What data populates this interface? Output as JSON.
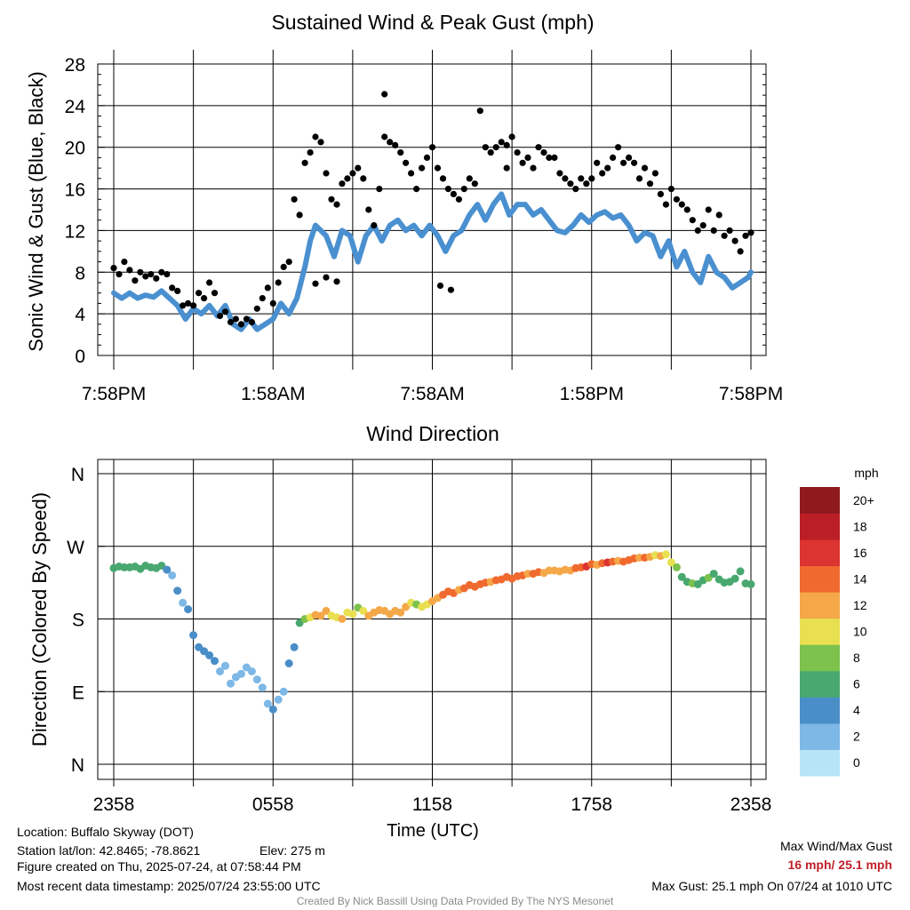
{
  "chart_data": [
    {
      "type": "line+scatter",
      "title": "Sustained Wind & Peak Gust (mph)",
      "ylabel": "Sonic Wind & Gust (Blue, Black)",
      "xlabel": "",
      "ylim": [
        0,
        28
      ],
      "yticks": [
        "0",
        "4",
        "8",
        "12",
        "16",
        "20",
        "24",
        "28"
      ],
      "xlim": [
        0,
        24
      ],
      "xticks": [
        {
          "x": 0,
          "label": "7:58PM"
        },
        {
          "x": 6,
          "label": "1:58AM"
        },
        {
          "x": 12,
          "label": "7:58AM"
        },
        {
          "x": 18,
          "label": "1:58PM"
        },
        {
          "x": 24,
          "label": "7:58PM"
        }
      ],
      "grid": true,
      "series": [
        {
          "kind": "line",
          "color": "#4a90d0",
          "x": [
            0,
            0.3,
            0.6,
            0.9,
            1.2,
            1.5,
            1.8,
            2.1,
            2.4,
            2.7,
            3.0,
            3.3,
            3.6,
            3.9,
            4.2,
            4.5,
            4.8,
            5.1,
            5.4,
            5.7,
            6.0,
            6.3,
            6.6,
            6.9,
            7.2,
            7.4,
            7.6,
            7.8,
            8.0,
            8.3,
            8.6,
            8.9,
            9.2,
            9.5,
            9.8,
            10.1,
            10.4,
            10.7,
            11.0,
            11.3,
            11.6,
            11.9,
            12.2,
            12.5,
            12.8,
            13.1,
            13.4,
            13.7,
            14.0,
            14.3,
            14.6,
            14.9,
            15.2,
            15.5,
            15.8,
            16.1,
            16.4,
            16.7,
            17.0,
            17.3,
            17.6,
            17.9,
            18.2,
            18.5,
            18.8,
            19.1,
            19.4,
            19.7,
            20.0,
            20.3,
            20.6,
            20.9,
            21.2,
            21.5,
            21.8,
            22.1,
            22.4,
            22.7,
            23.0,
            23.3,
            23.6,
            23.9,
            24.0
          ],
          "y": [
            6.0,
            5.5,
            6.0,
            5.5,
            5.8,
            5.6,
            6.2,
            5.5,
            4.8,
            3.5,
            4.5,
            4.0,
            4.8,
            3.8,
            4.8,
            3.0,
            2.5,
            3.5,
            2.5,
            3.0,
            3.5,
            5.0,
            4.0,
            5.5,
            8.5,
            11.0,
            12.5,
            12.0,
            11.5,
            9.5,
            12.0,
            11.5,
            9.0,
            11.5,
            12.5,
            11.0,
            12.5,
            13.0,
            12.0,
            12.5,
            11.5,
            12.5,
            11.5,
            10.0,
            11.5,
            12.0,
            13.5,
            14.5,
            13.0,
            14.5,
            15.5,
            13.5,
            14.5,
            14.5,
            13.5,
            14.0,
            13.0,
            12.0,
            11.8,
            12.5,
            13.5,
            12.8,
            13.5,
            13.8,
            13.2,
            13.5,
            12.5,
            11.0,
            11.8,
            11.5,
            9.5,
            11.0,
            8.5,
            10.0,
            8.0,
            7.0,
            9.5,
            8.0,
            7.5,
            6.5,
            7.0,
            7.5,
            8.0
          ]
        },
        {
          "kind": "scatter",
          "color": "#000000",
          "x": [
            0,
            0.2,
            0.4,
            0.6,
            0.8,
            1.0,
            1.2,
            1.4,
            1.6,
            1.8,
            2.0,
            2.2,
            2.4,
            2.6,
            2.8,
            3.0,
            3.2,
            3.4,
            3.6,
            3.8,
            4.0,
            4.2,
            4.4,
            4.6,
            4.8,
            5.0,
            5.2,
            5.4,
            5.6,
            5.8,
            6.0,
            6.2,
            6.4,
            6.6,
            6.8,
            7.0,
            7.2,
            7.4,
            7.6,
            7.8,
            8.0,
            8.2,
            8.4,
            8.6,
            8.8,
            9.0,
            9.2,
            9.4,
            9.6,
            9.8,
            10.0,
            10.2,
            10.4,
            10.6,
            10.8,
            11.0,
            11.2,
            11.4,
            11.6,
            11.8,
            12.0,
            12.2,
            12.4,
            12.6,
            12.8,
            13.0,
            13.2,
            13.4,
            13.6,
            13.8,
            14.0,
            14.2,
            14.4,
            14.6,
            14.8,
            15.0,
            15.2,
            15.4,
            15.6,
            15.8,
            16.0,
            16.2,
            16.4,
            16.6,
            16.8,
            17.0,
            17.2,
            17.4,
            17.6,
            17.8,
            18.0,
            18.2,
            18.4,
            18.6,
            18.8,
            19.0,
            19.2,
            19.4,
            19.6,
            19.8,
            20.0,
            20.2,
            20.4,
            20.6,
            20.8,
            21.0,
            21.2,
            21.4,
            21.6,
            21.8,
            22.0,
            22.2,
            22.4,
            22.6,
            22.8,
            23.0,
            23.2,
            23.4,
            23.6,
            23.8,
            24.0,
            10.2,
            14.8,
            8.0,
            8.4,
            7.6,
            12.3,
            12.7
          ],
          "y": [
            8.4,
            7.8,
            9.0,
            8.2,
            7.2,
            8.0,
            7.6,
            7.8,
            7.4,
            8.0,
            7.8,
            6.5,
            6.2,
            4.8,
            5.0,
            4.8,
            6.0,
            5.5,
            7.0,
            6.0,
            3.8,
            4.2,
            3.2,
            3.5,
            3.0,
            3.5,
            3.2,
            4.5,
            5.5,
            6.5,
            5.0,
            7.0,
            8.5,
            9.0,
            15.0,
            13.5,
            18.5,
            19.5,
            21.0,
            20.5,
            17.5,
            15.0,
            14.5,
            16.5,
            17.0,
            17.5,
            18.0,
            17.0,
            14.0,
            12.5,
            16.0,
            21.0,
            20.5,
            20.2,
            19.5,
            18.5,
            17.5,
            16.0,
            18.0,
            19.0,
            20.0,
            18.0,
            17.0,
            16.0,
            15.5,
            15.0,
            16.0,
            17.0,
            16.5,
            23.5,
            20.0,
            19.5,
            20.0,
            20.5,
            18.0,
            21.0,
            19.5,
            18.5,
            19.0,
            18.0,
            20.0,
            19.5,
            19.0,
            19.0,
            17.5,
            17.0,
            16.5,
            16.0,
            17.0,
            16.5,
            17.0,
            18.5,
            17.5,
            18.0,
            19.0,
            20.0,
            18.5,
            19.0,
            18.5,
            17.0,
            18.0,
            16.5,
            17.5,
            15.5,
            14.5,
            16.0,
            15.0,
            14.5,
            14.0,
            13.0,
            12.0,
            12.5,
            14.0,
            12.0,
            13.5,
            11.5,
            12.0,
            11.0,
            10.0,
            11.5,
            11.8,
            25.1,
            20.2,
            7.5,
            7.1,
            6.9,
            6.7,
            6.3
          ]
        }
      ]
    },
    {
      "type": "scatter",
      "title": "Wind Direction",
      "ylabel": "Direction (Colored By Speed)",
      "xlabel": "Time (UTC)",
      "ylim": [
        0,
        360
      ],
      "yticks": [
        {
          "v": 0,
          "label": "N"
        },
        {
          "v": 90,
          "label": "E"
        },
        {
          "v": 180,
          "label": "S"
        },
        {
          "v": 270,
          "label": "W"
        },
        {
          "v": 360,
          "label": "N"
        }
      ],
      "xlim": [
        0,
        24
      ],
      "xticks": [
        {
          "x": 0,
          "label": "2358"
        },
        {
          "x": 6,
          "label": "0558"
        },
        {
          "x": 12,
          "label": "1158"
        },
        {
          "x": 18,
          "label": "1758"
        },
        {
          "x": 24,
          "label": "2358"
        }
      ],
      "grid": true,
      "x": [
        0,
        0.2,
        0.4,
        0.6,
        0.8,
        1.0,
        1.2,
        1.4,
        1.6,
        1.8,
        2.0,
        2.2,
        2.4,
        2.6,
        2.8,
        3.0,
        3.2,
        3.4,
        3.6,
        3.8,
        4.0,
        4.2,
        4.4,
        4.6,
        4.8,
        5.0,
        5.2,
        5.4,
        5.6,
        5.8,
        6.0,
        6.2,
        6.4,
        6.6,
        6.8,
        7.0,
        7.2,
        7.4,
        7.6,
        7.8,
        8.0,
        8.2,
        8.4,
        8.6,
        8.8,
        9.0,
        9.2,
        9.4,
        9.6,
        9.8,
        10.0,
        10.2,
        10.4,
        10.6,
        10.8,
        11.0,
        11.2,
        11.4,
        11.6,
        11.8,
        12.0,
        12.2,
        12.4,
        12.6,
        12.8,
        13.0,
        13.2,
        13.4,
        13.6,
        13.8,
        14.0,
        14.2,
        14.4,
        14.6,
        14.8,
        15.0,
        15.2,
        15.4,
        15.6,
        15.8,
        16.0,
        16.2,
        16.4,
        16.6,
        16.8,
        17.0,
        17.2,
        17.4,
        17.6,
        17.8,
        18.0,
        18.2,
        18.4,
        18.6,
        18.8,
        19.0,
        19.2,
        19.4,
        19.6,
        19.8,
        20.0,
        20.2,
        20.4,
        20.6,
        20.8,
        21.0,
        21.2,
        21.4,
        21.6,
        21.8,
        22.0,
        22.2,
        22.4,
        22.6,
        22.8,
        23.0,
        23.2,
        23.4,
        23.6,
        23.8,
        24.0
      ],
      "y": [
        243,
        245,
        244,
        244,
        245,
        242,
        246,
        244,
        243,
        246,
        241,
        234,
        215,
        200,
        192,
        160,
        145,
        140,
        135,
        128,
        115,
        122,
        100,
        108,
        112,
        120,
        115,
        105,
        95,
        75,
        68,
        80,
        90,
        125,
        145,
        175,
        180,
        182,
        185,
        184,
        190,
        184,
        182,
        180,
        188,
        186,
        194,
        190,
        184,
        188,
        191,
        190,
        186,
        190,
        188,
        195,
        200,
        198,
        195,
        198,
        202,
        206,
        210,
        214,
        212,
        216,
        218,
        222,
        220,
        223,
        225,
        226,
        228,
        229,
        232,
        230,
        233,
        234,
        236,
        236,
        238,
        237,
        240,
        240,
        239,
        241,
        240,
        243,
        244,
        245,
        248,
        247,
        249,
        250,
        251,
        252,
        251,
        253,
        255,
        256,
        256,
        257,
        259,
        258,
        260,
        250,
        244,
        232,
        226,
        224,
        223,
        228,
        231,
        236,
        229,
        225,
        226,
        230,
        239,
        224,
        223
      ],
      "speed": [
        6,
        6,
        6,
        6,
        6,
        6,
        6,
        6,
        6,
        6,
        5,
        2,
        4,
        3,
        4,
        4,
        4,
        5,
        4,
        4,
        3,
        2,
        2,
        3,
        2,
        2,
        3,
        2,
        2,
        2,
        4,
        2,
        3,
        4,
        5,
        6,
        8,
        10,
        12,
        13,
        12,
        11,
        10,
        12,
        11,
        10,
        9,
        11,
        12,
        13,
        12,
        12,
        13,
        12,
        13,
        12,
        10,
        9,
        10,
        11,
        13,
        12,
        14,
        15,
        14,
        13,
        14,
        15,
        14,
        15,
        14,
        13,
        14,
        14,
        14,
        15,
        15,
        14,
        13,
        14,
        14,
        12,
        13,
        13,
        12,
        13,
        13,
        14,
        15,
        16,
        14,
        13,
        15,
        16,
        14,
        13,
        14,
        15,
        14,
        13,
        14,
        12,
        11,
        12,
        11,
        10,
        9,
        7,
        7,
        8,
        7,
        7,
        8,
        7,
        6,
        6,
        6,
        7,
        7,
        6,
        6
      ],
      "colorbar": {
        "title": "mph",
        "levels": [
          "0",
          "2",
          "4",
          "6",
          "8",
          "10",
          "12",
          "14",
          "16",
          "18",
          "20+"
        ],
        "colors": [
          "#b8e4f8",
          "#7db8e6",
          "#4a8ec8",
          "#48a870",
          "#7cc24c",
          "#e8e050",
          "#f4a848",
          "#f06a30",
          "#dc3430",
          "#bc1e26",
          "#8e1a1e"
        ]
      }
    }
  ],
  "footer": {
    "location": "Location: Buffalo Skyway (DOT)",
    "station": "Station lat/lon: 42.8465; -78.8621",
    "elevation": "Elev: 275 m",
    "created": "Figure created on Thu, 2025-07-24, at 07:58:44 PM",
    "recent": "Most recent data timestamp: 2025/07/24 23:55:00 UTC",
    "maxlabel": "Max Wind/Max Gust",
    "maxvalue": "16 mph/ 25.1 mph",
    "maxgust": "Max Gust: 25.1 mph On 07/24 at 1010 UTC",
    "credit": "Created By Nick Bassill Using Data Provided By The NYS Mesonet",
    "accent": "#c0202a"
  }
}
